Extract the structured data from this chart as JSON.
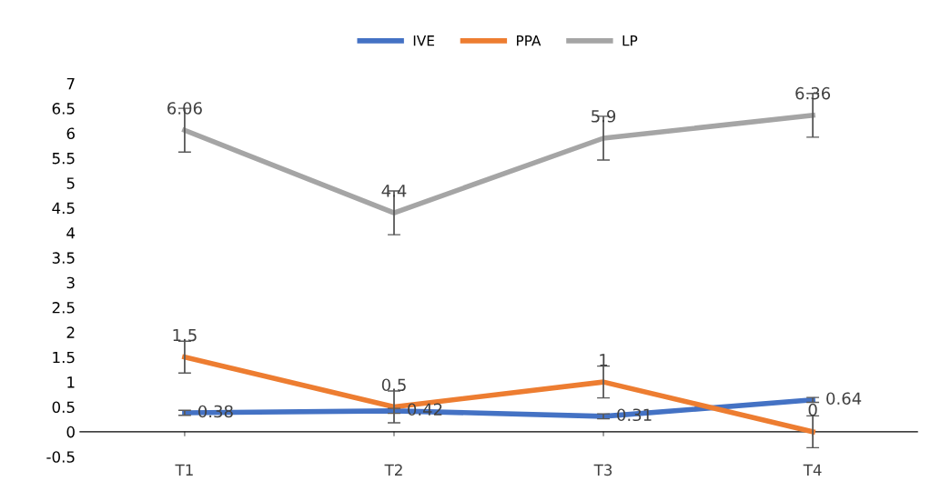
{
  "chart_data": {
    "type": "line",
    "categories": [
      "T1",
      "T2",
      "T3",
      "T4"
    ],
    "series": [
      {
        "name": "IVE",
        "color": "#4472c4",
        "values": [
          0.38,
          0.42,
          0.31,
          0.64
        ],
        "errors": [
          0.05,
          0.05,
          0.05,
          0.05
        ]
      },
      {
        "name": "PPA",
        "color": "#ed7d31",
        "values": [
          1.5,
          0.5,
          1,
          0
        ],
        "errors": [
          0.32,
          0.32,
          0.32,
          0.32
        ]
      },
      {
        "name": "LP",
        "color": "#a5a5a5",
        "values": [
          6.06,
          4.4,
          5.9,
          6.36
        ],
        "errors": [
          0.44,
          0.44,
          0.44,
          0.44
        ]
      }
    ],
    "ylim": [
      -0.5,
      7
    ],
    "yticks": [
      -0.5,
      0,
      0.5,
      1,
      1.5,
      2,
      2.5,
      3,
      3.5,
      4,
      4.5,
      5,
      5.5,
      6,
      6.5,
      7
    ],
    "data_labels": true,
    "legend": "top",
    "grid": false,
    "marker": "none",
    "line_style": "solid"
  }
}
